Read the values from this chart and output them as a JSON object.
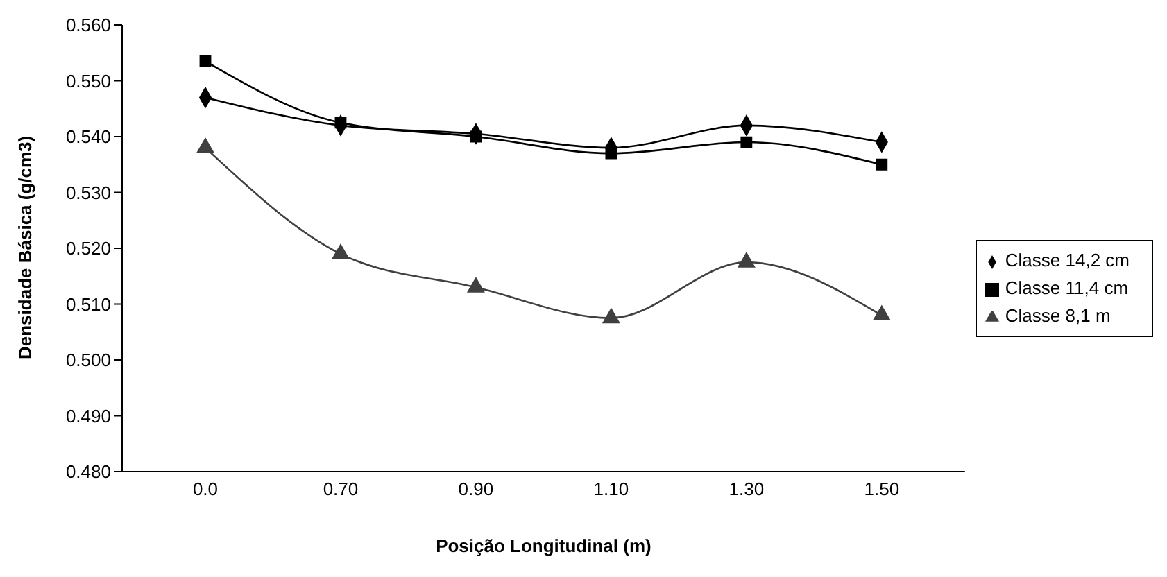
{
  "chart_data": {
    "type": "line",
    "xlabel": "Posição Longitudinal (m)",
    "ylabel": "Densidade Básica (g/cm3)",
    "categories": [
      "0.0",
      "0.70",
      "0.90",
      "1.10",
      "1.30",
      "1.50"
    ],
    "series": [
      {
        "name": "Classe 14,2 cm",
        "color": "#000000",
        "marker": "diamond",
        "values": [
          0.547,
          0.542,
          0.5405,
          0.538,
          0.542,
          0.539
        ]
      },
      {
        "name": "Classe 11,4 cm",
        "color": "#000000",
        "marker": "square",
        "values": [
          0.5535,
          0.5425,
          0.54,
          0.537,
          0.539,
          0.535
        ]
      },
      {
        "name": "Classe 8,1 m",
        "color": "#404040",
        "marker": "triangle",
        "values": [
          0.538,
          0.519,
          0.513,
          0.5075,
          0.5175,
          0.508
        ]
      }
    ],
    "ylim": [
      0.48,
      0.56
    ],
    "yticks": [
      {
        "value": 0.48,
        "label": "0.480"
      },
      {
        "value": 0.49,
        "label": "0.490"
      },
      {
        "value": 0.5,
        "label": "0.500"
      },
      {
        "value": 0.51,
        "label": "0.510"
      },
      {
        "value": 0.52,
        "label": "0.520"
      },
      {
        "value": 0.53,
        "label": "0.530"
      },
      {
        "value": 0.54,
        "label": "0.540"
      },
      {
        "value": 0.55,
        "label": "0.550"
      },
      {
        "value": 0.56,
        "label": "0.560"
      }
    ],
    "grid": false,
    "legend": "right",
    "line_style": "solid"
  }
}
